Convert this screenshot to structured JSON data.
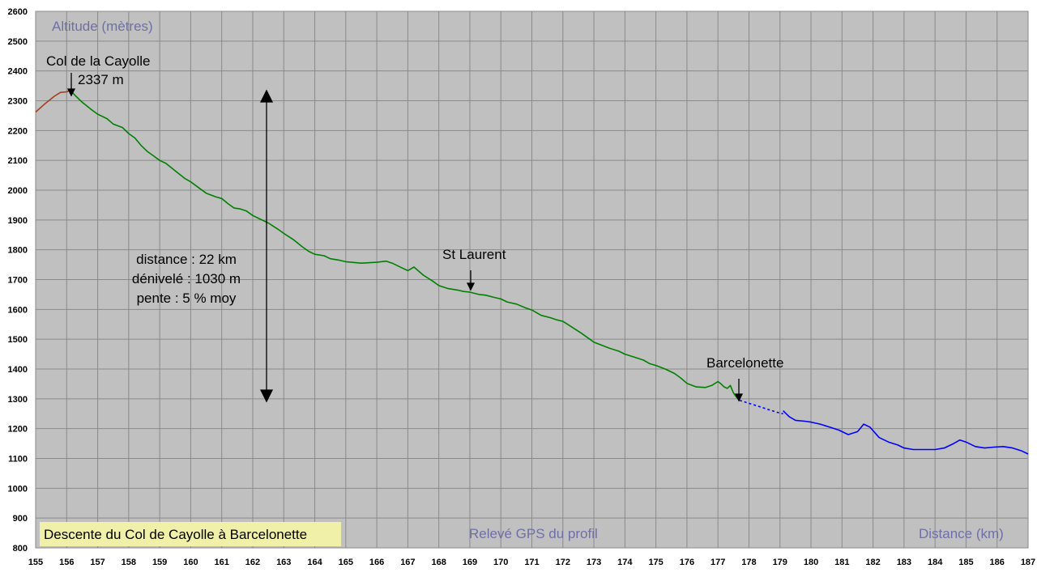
{
  "chart_data": {
    "type": "line",
    "title": "Descente du Col de Cayolle à Barcelonette",
    "ylabel": "Altitude (mètres)",
    "xlabel": "Distance (km)",
    "source_label": "Relevé GPS du profil",
    "xlim": [
      155,
      187
    ],
    "ylim": [
      800,
      2600
    ],
    "x_ticks": [
      155,
      156,
      157,
      158,
      159,
      160,
      161,
      162,
      163,
      164,
      165,
      166,
      167,
      168,
      169,
      170,
      171,
      172,
      173,
      174,
      175,
      176,
      177,
      178,
      179,
      180,
      181,
      182,
      183,
      184,
      185,
      186,
      187
    ],
    "y_ticks": [
      800,
      900,
      1000,
      1100,
      1200,
      1300,
      1400,
      1500,
      1600,
      1700,
      1800,
      1900,
      2000,
      2100,
      2200,
      2300,
      2400,
      2500,
      2600
    ],
    "grid": true,
    "colors": {
      "plot_bg": "#c0c0c0",
      "climb": "#a0401c",
      "descent": "#008000",
      "after": "#0000ff",
      "title_box": "#f0f0a8",
      "axis_text": "#6f6fa8"
    },
    "series": [
      {
        "x": [
          155.0,
          155.3,
          155.6,
          155.8,
          156.0,
          156.1
        ],
        "y": [
          2262,
          2290,
          2315,
          2328,
          2330,
          2335
        ]
      },
      {
        "x": [
          156.1,
          156.3,
          156.5,
          156.8,
          157.0,
          157.3,
          157.5,
          157.8,
          158.0,
          158.2,
          158.4,
          158.6,
          158.8,
          159.0,
          159.2,
          159.5,
          159.8,
          160.0,
          160.3,
          160.5,
          160.8,
          161.0,
          161.2,
          161.4,
          161.6,
          161.8,
          162.0,
          162.2,
          162.5,
          162.8,
          163.0,
          163.3,
          163.6,
          163.8,
          164.0,
          164.3,
          164.5,
          164.8,
          165.0,
          165.5,
          166.0,
          166.3,
          166.5,
          166.8,
          167.0,
          167.2,
          167.5,
          167.8,
          168.0,
          168.3,
          168.6,
          168.8,
          169.0,
          169.3,
          169.5,
          169.8,
          170.0,
          170.2,
          170.5,
          170.8,
          171.0,
          171.3,
          171.6,
          171.8,
          172.0,
          172.3,
          172.6,
          172.8,
          173.0,
          173.3,
          173.5,
          173.8,
          174.0,
          174.3,
          174.6,
          174.8,
          175.0,
          175.3,
          175.6,
          175.8,
          176.0,
          176.3,
          176.6,
          176.8,
          177.0,
          177.1,
          177.2,
          177.3,
          177.4,
          177.5,
          177.6,
          177.7
        ],
        "y": [
          2337,
          2315,
          2295,
          2270,
          2255,
          2240,
          2222,
          2210,
          2190,
          2175,
          2150,
          2130,
          2115,
          2100,
          2090,
          2065,
          2040,
          2028,
          2005,
          1990,
          1978,
          1972,
          1955,
          1940,
          1937,
          1930,
          1915,
          1905,
          1890,
          1870,
          1855,
          1835,
          1810,
          1795,
          1785,
          1780,
          1770,
          1765,
          1760,
          1755,
          1758,
          1762,
          1755,
          1740,
          1730,
          1742,
          1715,
          1695,
          1680,
          1670,
          1665,
          1660,
          1658,
          1650,
          1648,
          1640,
          1635,
          1625,
          1618,
          1605,
          1598,
          1580,
          1572,
          1565,
          1560,
          1540,
          1520,
          1505,
          1490,
          1478,
          1470,
          1460,
          1450,
          1440,
          1430,
          1418,
          1412,
          1400,
          1385,
          1370,
          1352,
          1340,
          1338,
          1345,
          1358,
          1350,
          1340,
          1335,
          1345,
          1320,
          1305,
          1295
        ]
      },
      {
        "x": [
          177.7,
          178.0,
          178.3,
          178.6,
          178.9,
          179.1
        ],
        "y": [
          1295,
          1285,
          1275,
          1265,
          1255,
          1250
        ]
      },
      {
        "x": [
          179.1,
          179.3,
          179.5,
          179.8,
          180.0,
          180.3,
          180.6,
          180.9,
          181.2,
          181.5,
          181.7,
          181.9,
          182.2,
          182.5,
          182.8,
          183.0,
          183.3,
          183.6,
          184.0,
          184.3,
          184.6,
          184.8,
          185.0,
          185.3,
          185.6,
          185.9,
          186.2,
          186.5,
          186.8,
          187.0
        ],
        "y": [
          1260,
          1240,
          1228,
          1225,
          1222,
          1215,
          1205,
          1195,
          1180,
          1190,
          1215,
          1205,
          1170,
          1155,
          1145,
          1135,
          1130,
          1130,
          1130,
          1135,
          1150,
          1162,
          1155,
          1140,
          1135,
          1138,
          1140,
          1135,
          1125,
          1115
        ]
      }
    ],
    "annotations": {
      "col_name": "Col de la Cayolle",
      "col_alt": "2337 m",
      "st_laurent": "St Laurent",
      "barcelonette": "Barcelonette",
      "stats": [
        "distance : 22 km",
        "dénivelé : 1030 m",
        "pente : 5 % moy"
      ]
    }
  }
}
